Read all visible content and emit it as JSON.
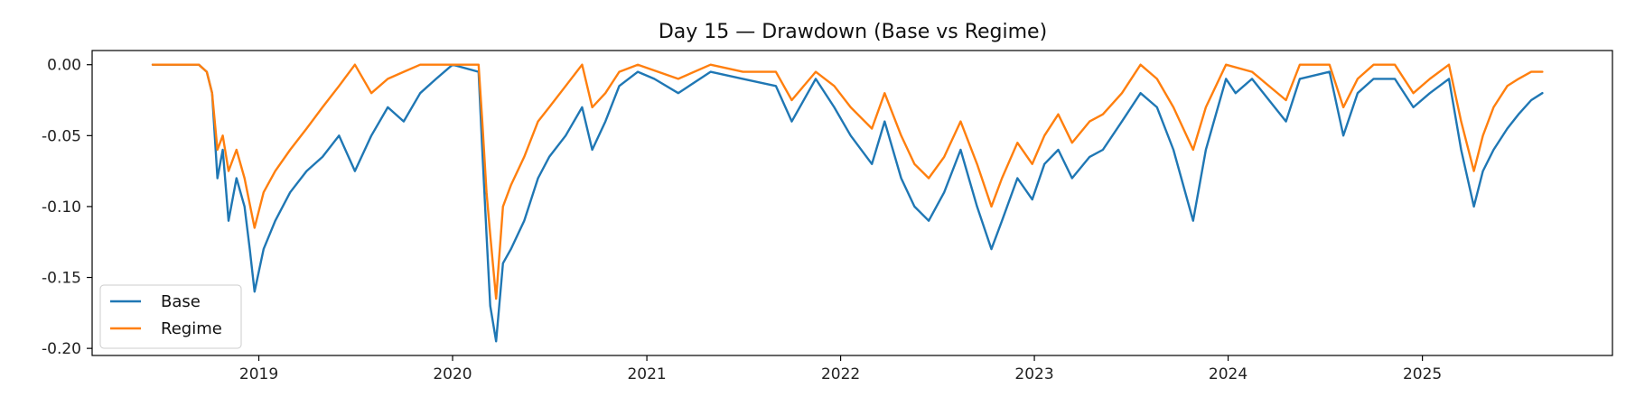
{
  "chart_data": {
    "type": "line",
    "title": "Day 15 — Drawdown (Base vs Regime)",
    "xlabel": "",
    "ylabel": "",
    "x_ticks": [
      "2019",
      "2020",
      "2021",
      "2022",
      "2023",
      "2024",
      "2025"
    ],
    "y_ticks": [
      "0.00",
      "-0.05",
      "-0.10",
      "-0.15",
      "-0.20"
    ],
    "xlim": [
      "2018-02-21",
      "2025-12-25"
    ],
    "ylim": [
      -0.205,
      0.01
    ],
    "grid": false,
    "legend_position": "lower-left",
    "series": [
      {
        "name": "Base",
        "color": "#1f77b4",
        "points": [
          [
            "2018-06-15",
            0.0
          ],
          [
            "2018-09-10",
            0.0
          ],
          [
            "2018-09-25",
            -0.005
          ],
          [
            "2018-10-05",
            -0.02
          ],
          [
            "2018-10-15",
            -0.08
          ],
          [
            "2018-10-25",
            -0.06
          ],
          [
            "2018-11-05",
            -0.11
          ],
          [
            "2018-11-20",
            -0.08
          ],
          [
            "2018-12-05",
            -0.1
          ],
          [
            "2018-12-15",
            -0.13
          ],
          [
            "2018-12-24",
            -0.16
          ],
          [
            "2019-01-10",
            -0.13
          ],
          [
            "2019-02-01",
            -0.11
          ],
          [
            "2019-03-01",
            -0.09
          ],
          [
            "2019-04-01",
            -0.075
          ],
          [
            "2019-05-01",
            -0.065
          ],
          [
            "2019-06-01",
            -0.05
          ],
          [
            "2019-07-01",
            -0.075
          ],
          [
            "2019-08-01",
            -0.05
          ],
          [
            "2019-09-01",
            -0.03
          ],
          [
            "2019-10-01",
            -0.04
          ],
          [
            "2019-11-01",
            -0.02
          ],
          [
            "2019-12-01",
            -0.01
          ],
          [
            "2020-01-01",
            0.0
          ],
          [
            "2020-02-19",
            -0.005
          ],
          [
            "2020-02-26",
            -0.06
          ],
          [
            "2020-03-05",
            -0.12
          ],
          [
            "2020-03-12",
            -0.17
          ],
          [
            "2020-03-23",
            -0.195
          ],
          [
            "2020-04-05",
            -0.14
          ],
          [
            "2020-04-20",
            -0.13
          ],
          [
            "2020-05-15",
            -0.11
          ],
          [
            "2020-06-10",
            -0.08
          ],
          [
            "2020-07-01",
            -0.065
          ],
          [
            "2020-08-01",
            -0.05
          ],
          [
            "2020-09-01",
            -0.03
          ],
          [
            "2020-09-20",
            -0.06
          ],
          [
            "2020-10-15",
            -0.04
          ],
          [
            "2020-11-10",
            -0.015
          ],
          [
            "2020-12-15",
            -0.005
          ],
          [
            "2021-01-15",
            -0.01
          ],
          [
            "2021-03-01",
            -0.02
          ],
          [
            "2021-05-01",
            -0.005
          ],
          [
            "2021-07-01",
            -0.01
          ],
          [
            "2021-09-01",
            -0.015
          ],
          [
            "2021-10-01",
            -0.04
          ],
          [
            "2021-11-15",
            -0.01
          ],
          [
            "2021-12-20",
            -0.03
          ],
          [
            "2022-01-20",
            -0.05
          ],
          [
            "2022-03-01",
            -0.07
          ],
          [
            "2022-03-25",
            -0.04
          ],
          [
            "2022-04-25",
            -0.08
          ],
          [
            "2022-05-20",
            -0.1
          ],
          [
            "2022-06-16",
            -0.11
          ],
          [
            "2022-07-15",
            -0.09
          ],
          [
            "2022-08-15",
            -0.06
          ],
          [
            "2022-09-15",
            -0.1
          ],
          [
            "2022-10-12",
            -0.13
          ],
          [
            "2022-11-01",
            -0.11
          ],
          [
            "2022-11-30",
            -0.08
          ],
          [
            "2022-12-28",
            -0.095
          ],
          [
            "2023-01-20",
            -0.07
          ],
          [
            "2023-02-15",
            -0.06
          ],
          [
            "2023-03-13",
            -0.08
          ],
          [
            "2023-04-15",
            -0.065
          ],
          [
            "2023-05-10",
            -0.06
          ],
          [
            "2023-06-15",
            -0.04
          ],
          [
            "2023-07-20",
            -0.02
          ],
          [
            "2023-08-20",
            -0.03
          ],
          [
            "2023-09-20",
            -0.06
          ],
          [
            "2023-10-27",
            -0.11
          ],
          [
            "2023-11-20",
            -0.06
          ],
          [
            "2023-12-28",
            -0.01
          ],
          [
            "2024-01-15",
            -0.02
          ],
          [
            "2024-02-15",
            -0.01
          ],
          [
            "2024-04-19",
            -0.04
          ],
          [
            "2024-05-15",
            -0.01
          ],
          [
            "2024-07-10",
            -0.005
          ],
          [
            "2024-08-05",
            -0.05
          ],
          [
            "2024-09-01",
            -0.02
          ],
          [
            "2024-10-01",
            -0.01
          ],
          [
            "2024-11-10",
            -0.01
          ],
          [
            "2024-12-15",
            -0.03
          ],
          [
            "2025-01-15",
            -0.02
          ],
          [
            "2025-02-20",
            -0.01
          ],
          [
            "2025-03-15",
            -0.06
          ],
          [
            "2025-04-08",
            -0.1
          ],
          [
            "2025-04-25",
            -0.075
          ],
          [
            "2025-05-15",
            -0.06
          ],
          [
            "2025-06-10",
            -0.045
          ],
          [
            "2025-07-01",
            -0.035
          ],
          [
            "2025-07-25",
            -0.025
          ],
          [
            "2025-08-15",
            -0.02
          ]
        ]
      },
      {
        "name": "Regime",
        "color": "#ff7f0e",
        "points": [
          [
            "2018-06-15",
            0.0
          ],
          [
            "2018-09-10",
            0.0
          ],
          [
            "2018-09-25",
            -0.005
          ],
          [
            "2018-10-05",
            -0.02
          ],
          [
            "2018-10-15",
            -0.06
          ],
          [
            "2018-10-25",
            -0.05
          ],
          [
            "2018-11-05",
            -0.075
          ],
          [
            "2018-11-20",
            -0.06
          ],
          [
            "2018-12-05",
            -0.08
          ],
          [
            "2018-12-24",
            -0.115
          ],
          [
            "2019-01-10",
            -0.09
          ],
          [
            "2019-02-01",
            -0.075
          ],
          [
            "2019-03-01",
            -0.06
          ],
          [
            "2019-04-01",
            -0.045
          ],
          [
            "2019-05-01",
            -0.03
          ],
          [
            "2019-06-01",
            -0.015
          ],
          [
            "2019-07-01",
            0.0
          ],
          [
            "2019-08-01",
            -0.02
          ],
          [
            "2019-09-01",
            -0.01
          ],
          [
            "2019-10-01",
            -0.005
          ],
          [
            "2019-11-01",
            0.0
          ],
          [
            "2020-02-19",
            0.0
          ],
          [
            "2020-02-26",
            -0.04
          ],
          [
            "2020-03-05",
            -0.09
          ],
          [
            "2020-03-12",
            -0.12
          ],
          [
            "2020-03-23",
            -0.165
          ],
          [
            "2020-04-05",
            -0.1
          ],
          [
            "2020-04-20",
            -0.085
          ],
          [
            "2020-05-15",
            -0.065
          ],
          [
            "2020-06-10",
            -0.04
          ],
          [
            "2020-07-01",
            -0.03
          ],
          [
            "2020-08-01",
            -0.015
          ],
          [
            "2020-09-01",
            0.0
          ],
          [
            "2020-09-20",
            -0.03
          ],
          [
            "2020-10-15",
            -0.02
          ],
          [
            "2020-11-10",
            -0.005
          ],
          [
            "2020-12-15",
            0.0
          ],
          [
            "2021-03-01",
            -0.01
          ],
          [
            "2021-05-01",
            0.0
          ],
          [
            "2021-07-01",
            -0.005
          ],
          [
            "2021-09-01",
            -0.005
          ],
          [
            "2021-10-01",
            -0.025
          ],
          [
            "2021-11-15",
            -0.005
          ],
          [
            "2021-12-20",
            -0.015
          ],
          [
            "2022-01-20",
            -0.03
          ],
          [
            "2022-03-01",
            -0.045
          ],
          [
            "2022-03-25",
            -0.02
          ],
          [
            "2022-04-25",
            -0.05
          ],
          [
            "2022-05-20",
            -0.07
          ],
          [
            "2022-06-16",
            -0.08
          ],
          [
            "2022-07-15",
            -0.065
          ],
          [
            "2022-08-15",
            -0.04
          ],
          [
            "2022-09-15",
            -0.07
          ],
          [
            "2022-10-12",
            -0.1
          ],
          [
            "2022-11-01",
            -0.08
          ],
          [
            "2022-11-30",
            -0.055
          ],
          [
            "2022-12-28",
            -0.07
          ],
          [
            "2023-01-20",
            -0.05
          ],
          [
            "2023-02-15",
            -0.035
          ],
          [
            "2023-03-13",
            -0.055
          ],
          [
            "2023-04-15",
            -0.04
          ],
          [
            "2023-05-10",
            -0.035
          ],
          [
            "2023-06-15",
            -0.02
          ],
          [
            "2023-07-20",
            0.0
          ],
          [
            "2023-08-20",
            -0.01
          ],
          [
            "2023-09-20",
            -0.03
          ],
          [
            "2023-10-27",
            -0.06
          ],
          [
            "2023-11-20",
            -0.03
          ],
          [
            "2023-12-28",
            0.0
          ],
          [
            "2024-02-15",
            -0.005
          ],
          [
            "2024-04-19",
            -0.025
          ],
          [
            "2024-05-15",
            0.0
          ],
          [
            "2024-07-10",
            0.0
          ],
          [
            "2024-08-05",
            -0.03
          ],
          [
            "2024-09-01",
            -0.01
          ],
          [
            "2024-10-01",
            0.0
          ],
          [
            "2024-11-10",
            0.0
          ],
          [
            "2024-12-15",
            -0.02
          ],
          [
            "2025-01-15",
            -0.01
          ],
          [
            "2025-02-20",
            0.0
          ],
          [
            "2025-03-15",
            -0.04
          ],
          [
            "2025-04-08",
            -0.075
          ],
          [
            "2025-04-25",
            -0.05
          ],
          [
            "2025-05-15",
            -0.03
          ],
          [
            "2025-06-10",
            -0.015
          ],
          [
            "2025-07-01",
            -0.01
          ],
          [
            "2025-07-25",
            -0.005
          ],
          [
            "2025-08-15",
            -0.005
          ]
        ]
      }
    ]
  }
}
